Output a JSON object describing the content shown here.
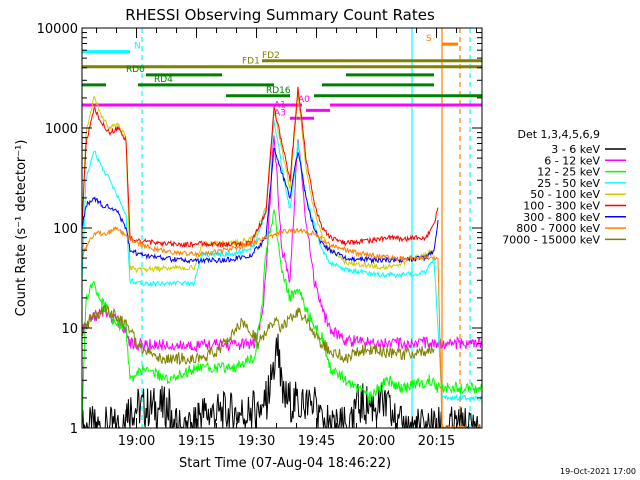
{
  "chart_data": {
    "type": "line",
    "title": "RHESSI Observing Summary Count Rates",
    "xlabel": "Start Time (07-Aug-04 18:46:22)",
    "ylabel": "Count Rate (s⁻¹ detector⁻¹)",
    "x_unit": "minutes since 18:46:22",
    "xlim": [
      0,
      100
    ],
    "ylim": [
      1,
      10000
    ],
    "yscale": "log",
    "x_ticks": [
      {
        "value": 13.63,
        "label": "19:00"
      },
      {
        "value": 28.63,
        "label": "19:15"
      },
      {
        "value": 43.63,
        "label": "19:30"
      },
      {
        "value": 58.63,
        "label": "19:45"
      },
      {
        "value": 73.63,
        "label": "20:00"
      },
      {
        "value": 88.63,
        "label": "20:15"
      }
    ],
    "y_ticks": [
      {
        "value": 1,
        "label": "1"
      },
      {
        "value": 10,
        "label": "10"
      },
      {
        "value": 100,
        "label": "100"
      },
      {
        "value": 1000,
        "label": "1000"
      },
      {
        "value": 10000,
        "label": "10000"
      }
    ],
    "legend_title": "Det 1,3,4,5,6,9",
    "series": [
      {
        "name": "3 - 6 keV",
        "color": "#000000",
        "points": [
          [
            0,
            1
          ],
          [
            11,
            1
          ],
          [
            11,
            1.6
          ],
          [
            22,
            1.6
          ],
          [
            22,
            1
          ],
          [
            29,
            1
          ],
          [
            29,
            1.4
          ],
          [
            42,
            1.4
          ],
          [
            46,
            1.8
          ],
          [
            49,
            6
          ],
          [
            50,
            2
          ],
          [
            55,
            1.7
          ],
          [
            58,
            1.6
          ],
          [
            62,
            1
          ],
          [
            68,
            1
          ],
          [
            68,
            1.7
          ],
          [
            76,
            1.7
          ],
          [
            79,
            1
          ],
          [
            100,
            1
          ]
        ]
      },
      {
        "name": "6 - 12 keV",
        "color": "#ff00ff",
        "points": [
          [
            0,
            10
          ],
          [
            2,
            12
          ],
          [
            5,
            15
          ],
          [
            8,
            12
          ],
          [
            11,
            10
          ],
          [
            12,
            7
          ],
          [
            14,
            6.8
          ],
          [
            22,
            6.8
          ],
          [
            25,
            6.5
          ],
          [
            30,
            6.8
          ],
          [
            38,
            6.8
          ],
          [
            43,
            7
          ],
          [
            45,
            12
          ],
          [
            46,
            40
          ],
          [
            48,
            900
          ],
          [
            50,
            60
          ],
          [
            52,
            30
          ],
          [
            54,
            800
          ],
          [
            56,
            120
          ],
          [
            58,
            30
          ],
          [
            60,
            15
          ],
          [
            62,
            10
          ],
          [
            66,
            7.5
          ],
          [
            80,
            7
          ],
          [
            88,
            7.2
          ],
          [
            90,
            7
          ],
          [
            100,
            7
          ]
        ]
      },
      {
        "name": "12 - 25 keV",
        "color": "#00ff00",
        "points": [
          [
            0,
            1
          ],
          [
            1,
            20
          ],
          [
            3,
            28
          ],
          [
            5,
            18
          ],
          [
            8,
            12
          ],
          [
            11,
            10
          ],
          [
            12,
            3
          ],
          [
            16,
            4
          ],
          [
            22,
            3
          ],
          [
            28,
            4
          ],
          [
            38,
            4
          ],
          [
            43,
            5
          ],
          [
            45,
            15
          ],
          [
            46,
            60
          ],
          [
            48,
            150
          ],
          [
            50,
            40
          ],
          [
            52,
            20
          ],
          [
            54,
            25
          ],
          [
            56,
            15
          ],
          [
            60,
            8
          ],
          [
            62,
            4
          ],
          [
            66,
            3
          ],
          [
            72,
            2
          ],
          [
            76,
            3
          ],
          [
            80,
            2.5
          ],
          [
            87,
            3
          ],
          [
            89,
            2.5
          ],
          [
            100,
            2.5
          ]
        ]
      },
      {
        "name": "25 - 50 keV",
        "color": "#00ffff",
        "points": [
          [
            0,
            30
          ],
          [
            1,
            300
          ],
          [
            3,
            600
          ],
          [
            5,
            400
          ],
          [
            7,
            300
          ],
          [
            9,
            200
          ],
          [
            11,
            130
          ],
          [
            12,
            30
          ],
          [
            14,
            28
          ],
          [
            22,
            28
          ],
          [
            28,
            28
          ],
          [
            30,
            55
          ],
          [
            38,
            55
          ],
          [
            43,
            65
          ],
          [
            46,
            150
          ],
          [
            48,
            1200
          ],
          [
            50,
            400
          ],
          [
            52,
            150
          ],
          [
            54,
            700
          ],
          [
            56,
            200
          ],
          [
            58,
            110
          ],
          [
            60,
            60
          ],
          [
            62,
            45
          ],
          [
            66,
            38
          ],
          [
            72,
            35
          ],
          [
            76,
            34
          ],
          [
            80,
            34
          ],
          [
            86,
            36
          ],
          [
            88,
            50
          ],
          [
            90,
            2
          ],
          [
            100,
            2
          ]
        ]
      },
      {
        "name": "50 - 100 keV",
        "color": "#cccc00",
        "points": [
          [
            0,
            100
          ],
          [
            1,
            900
          ],
          [
            3,
            2000
          ],
          [
            5,
            1300
          ],
          [
            7,
            1000
          ],
          [
            9,
            1100
          ],
          [
            11,
            800
          ],
          [
            12,
            40
          ],
          [
            14,
            38
          ],
          [
            22,
            40
          ],
          [
            28,
            40
          ],
          [
            30,
            70
          ],
          [
            38,
            70
          ],
          [
            43,
            80
          ],
          [
            46,
            160
          ],
          [
            48,
            1500
          ],
          [
            50,
            600
          ],
          [
            52,
            250
          ],
          [
            54,
            2200
          ],
          [
            56,
            400
          ],
          [
            58,
            150
          ],
          [
            60,
            85
          ],
          [
            62,
            60
          ],
          [
            66,
            45
          ],
          [
            72,
            42
          ],
          [
            76,
            40
          ],
          [
            80,
            45
          ],
          [
            86,
            55
          ],
          [
            88,
            60
          ]
        ]
      },
      {
        "name": "100 - 300 keV",
        "color": "#ff0000",
        "points": [
          [
            0,
            100
          ],
          [
            1,
            700
          ],
          [
            3,
            1600
          ],
          [
            5,
            1100
          ],
          [
            7,
            900
          ],
          [
            9,
            1000
          ],
          [
            11,
            750
          ],
          [
            12,
            80
          ],
          [
            14,
            75
          ],
          [
            20,
            70
          ],
          [
            26,
            68
          ],
          [
            30,
            70
          ],
          [
            36,
            68
          ],
          [
            42,
            70
          ],
          [
            46,
            140
          ],
          [
            48,
            1600
          ],
          [
            50,
            700
          ],
          [
            52,
            300
          ],
          [
            54,
            2500
          ],
          [
            56,
            500
          ],
          [
            58,
            180
          ],
          [
            60,
            100
          ],
          [
            62,
            80
          ],
          [
            66,
            70
          ],
          [
            72,
            75
          ],
          [
            76,
            80
          ],
          [
            80,
            78
          ],
          [
            86,
            80
          ],
          [
            88,
            110
          ],
          [
            89,
            160
          ]
        ]
      },
      {
        "name": "300 - 800 keV",
        "color": "#0000ff",
        "points": [
          [
            0,
            100
          ],
          [
            1,
            170
          ],
          [
            3,
            200
          ],
          [
            5,
            170
          ],
          [
            7,
            160
          ],
          [
            9,
            140
          ],
          [
            11,
            100
          ],
          [
            12,
            60
          ],
          [
            14,
            55
          ],
          [
            20,
            50
          ],
          [
            26,
            47
          ],
          [
            30,
            47
          ],
          [
            36,
            48
          ],
          [
            42,
            52
          ],
          [
            46,
            80
          ],
          [
            48,
            650
          ],
          [
            50,
            350
          ],
          [
            52,
            200
          ],
          [
            54,
            600
          ],
          [
            56,
            200
          ],
          [
            58,
            100
          ],
          [
            60,
            70
          ],
          [
            62,
            60
          ],
          [
            66,
            50
          ],
          [
            72,
            48
          ],
          [
            76,
            48
          ],
          [
            80,
            48
          ],
          [
            86,
            50
          ],
          [
            88,
            60
          ],
          [
            89,
            120
          ]
        ]
      },
      {
        "name": "800 - 7000 keV",
        "color": "#ff8000",
        "points": [
          [
            0,
            50
          ],
          [
            2,
            80
          ],
          [
            4,
            90
          ],
          [
            6,
            85
          ],
          [
            8,
            100
          ],
          [
            10,
            90
          ],
          [
            12,
            80
          ],
          [
            14,
            70
          ],
          [
            18,
            62
          ],
          [
            22,
            58
          ],
          [
            26,
            55
          ],
          [
            30,
            55
          ],
          [
            34,
            58
          ],
          [
            38,
            62
          ],
          [
            42,
            68
          ],
          [
            46,
            80
          ],
          [
            50,
            92
          ],
          [
            54,
            95
          ],
          [
            58,
            88
          ],
          [
            60,
            78
          ],
          [
            62,
            68
          ],
          [
            66,
            60
          ],
          [
            70,
            55
          ],
          [
            74,
            52
          ],
          [
            78,
            50
          ],
          [
            82,
            50
          ],
          [
            86,
            50
          ],
          [
            89,
            50
          ],
          [
            90,
            1
          ],
          [
            100,
            1
          ]
        ]
      },
      {
        "name": "7000 - 15000 keV",
        "color": "#808000",
        "points": [
          [
            0,
            9
          ],
          [
            2,
            12
          ],
          [
            4,
            14
          ],
          [
            6,
            15
          ],
          [
            8,
            14
          ],
          [
            10,
            12
          ],
          [
            12,
            10
          ],
          [
            14,
            7
          ],
          [
            18,
            5
          ],
          [
            22,
            5
          ],
          [
            26,
            5
          ],
          [
            30,
            5
          ],
          [
            34,
            6
          ],
          [
            38,
            9
          ],
          [
            40,
            12
          ],
          [
            42,
            10
          ],
          [
            44,
            7
          ],
          [
            46,
            9
          ],
          [
            48,
            12
          ],
          [
            50,
            10
          ],
          [
            52,
            12
          ],
          [
            54,
            15
          ],
          [
            56,
            12
          ],
          [
            58,
            9
          ],
          [
            60,
            7
          ],
          [
            62,
            6
          ],
          [
            66,
            5
          ],
          [
            70,
            6
          ],
          [
            74,
            6
          ],
          [
            78,
            5.5
          ],
          [
            82,
            5.5
          ],
          [
            86,
            6
          ],
          [
            88,
            6.2
          ]
        ]
      }
    ],
    "annotation_bars": [
      {
        "label": "N",
        "color": "#00ffff",
        "y": 5800,
        "segments": [
          [
            0,
            12
          ]
        ],
        "label_x": 13
      },
      {
        "label": "S",
        "color": "#ff8000",
        "y": 6900,
        "segments": [
          [
            90,
            94
          ]
        ],
        "label_x": 86
      },
      {
        "label": "FD1",
        "color": "#808000",
        "y": 4100,
        "segments": [
          [
            0,
            100
          ]
        ],
        "label_x": 40
      },
      {
        "label": "FD2",
        "color": "#808000",
        "y": 4700,
        "segments": [
          [
            45,
            100
          ]
        ],
        "label_x": 45
      },
      {
        "label": "RD0",
        "color": "#008000",
        "y": 3400,
        "segments": [
          [
            16,
            35
          ],
          [
            66,
            88
          ]
        ],
        "label_x": 11
      },
      {
        "label": "RD4",
        "color": "#008000",
        "y": 2700,
        "segments": [
          [
            0,
            6
          ],
          [
            14,
            48
          ],
          [
            60,
            88
          ]
        ],
        "label_x": 18
      },
      {
        "label": "RD16",
        "color": "#008000",
        "y": 2100,
        "segments": [
          [
            36,
            52
          ],
          [
            58,
            100
          ]
        ],
        "label_x": 46
      },
      {
        "label": "A0",
        "color": "#ff00ff",
        "y": 1700,
        "segments": [
          [
            0,
            55
          ],
          [
            62,
            100
          ]
        ],
        "label_x": 54
      },
      {
        "label": "A1",
        "color": "#ff00ff",
        "y": 1500,
        "segments": [
          [
            56,
            62
          ]
        ],
        "label_x": 48
      },
      {
        "label": "A3",
        "color": "#ff00ff",
        "y": 1250,
        "segments": [
          [
            52,
            58
          ]
        ],
        "label_x": 48
      }
    ],
    "vertical_markers": [
      {
        "x": 82.5,
        "color": "#00ffff",
        "style": "solid"
      },
      {
        "x": 90,
        "color": "#ff8000",
        "style": "solid"
      },
      {
        "x": 15,
        "color": "#00ffff",
        "style": "dashed"
      },
      {
        "x": 94.5,
        "color": "#ff8000",
        "style": "dashed"
      },
      {
        "x": 97,
        "color": "#00ffff",
        "style": "dashed"
      }
    ],
    "footer_timestamp": "19-Oct-2021 17:00"
  }
}
